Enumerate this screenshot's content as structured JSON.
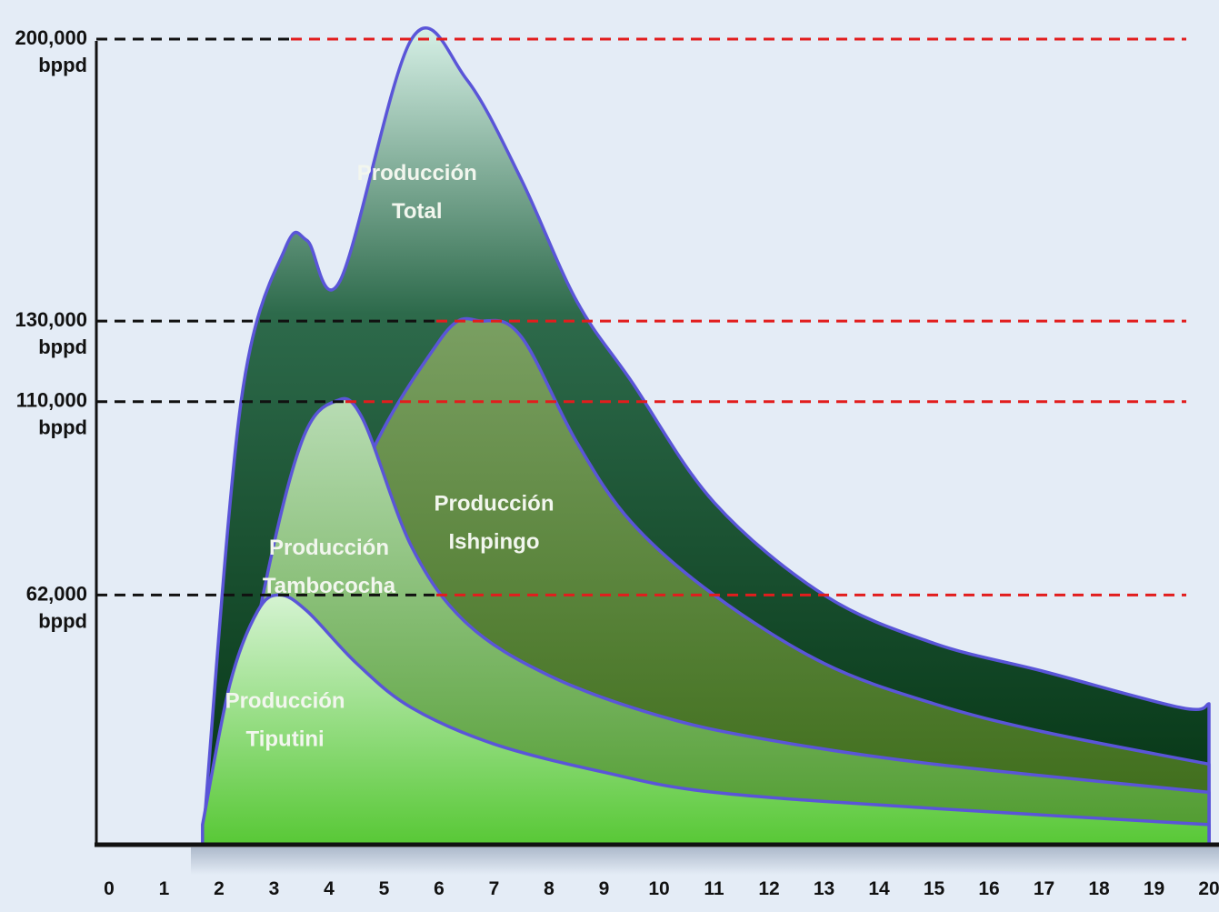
{
  "chart_data": {
    "type": "area",
    "x_ticks": [
      "0",
      "1",
      "2",
      "3",
      "4",
      "5",
      "6",
      "7",
      "8",
      "9",
      "10",
      "11",
      "12",
      "13",
      "14",
      "15",
      "16",
      "17",
      "18",
      "19",
      "20"
    ],
    "y_marks": [
      {
        "value": 200000,
        "label": "200,000",
        "unit": "bppd"
      },
      {
        "value": 130000,
        "label": "130,000",
        "unit": "bppd"
      },
      {
        "value": 110000,
        "label": "110,000",
        "unit": "bppd"
      },
      {
        "value": 62000,
        "label": "62,000",
        "unit": "bppd"
      }
    ],
    "ylim": [
      0,
      200000
    ],
    "xlim": [
      0,
      20
    ],
    "series": [
      {
        "name": "Total",
        "label_lines": [
          "Producción",
          "Total"
        ],
        "x": [
          1.7,
          2.4,
          3.2,
          3.6,
          4.2,
          5.5,
          6.5,
          7.5,
          8.5,
          9.5,
          11,
          13,
          15,
          17,
          19.5,
          20
        ],
        "values": [
          0,
          110000,
          148000,
          150000,
          140000,
          200000,
          190000,
          165000,
          135000,
          115000,
          85000,
          62000,
          50000,
          43000,
          34000,
          35000
        ]
      },
      {
        "name": "Ishpingo",
        "label_lines": [
          "Producción",
          "Ishpingo"
        ],
        "x": [
          3.5,
          4.3,
          6.0,
          6.8,
          7.5,
          8.5,
          9.5,
          11,
          13,
          15,
          17,
          20
        ],
        "values": [
          0,
          80000,
          125000,
          130000,
          126000,
          100000,
          80000,
          62000,
          45000,
          35000,
          28000,
          20000
        ]
      },
      {
        "name": "Tambococha",
        "label_lines": [
          "Producción",
          "Tambococha"
        ],
        "x": [
          2.0,
          2.8,
          3.5,
          4.1,
          4.6,
          5.5,
          6.5,
          8,
          10,
          12,
          15,
          20
        ],
        "values": [
          0,
          62000,
          100000,
          110000,
          106000,
          74000,
          55000,
          42000,
          32000,
          26000,
          20000,
          13000
        ]
      },
      {
        "name": "Tiputini",
        "label_lines": [
          "Producción",
          "Tiputini"
        ],
        "x": [
          1.7,
          2.2,
          2.7,
          3.1,
          3.6,
          4.5,
          5.5,
          7,
          9,
          11,
          15,
          20
        ],
        "values": [
          5000,
          40000,
          58000,
          62000,
          58000,
          45000,
          34000,
          25000,
          18000,
          13000,
          9000,
          5000
        ]
      }
    ],
    "colors": {
      "outline": "#5a55d8",
      "target_line": "#e21d1d",
      "guide_line": "#111111",
      "total_top": "#d6f0e6",
      "total_mid": "#2d6a4b",
      "total_bottom": "#033211",
      "ishpingo_top": "#7a9f62",
      "ishpingo_bottom": "#3b6a16",
      "tambococha_top": "#b8dcb4",
      "tambococha_bottom": "#4e9a2c",
      "tiputini_top": "#d5f3d2",
      "tiputini_bottom": "#58c836"
    }
  }
}
